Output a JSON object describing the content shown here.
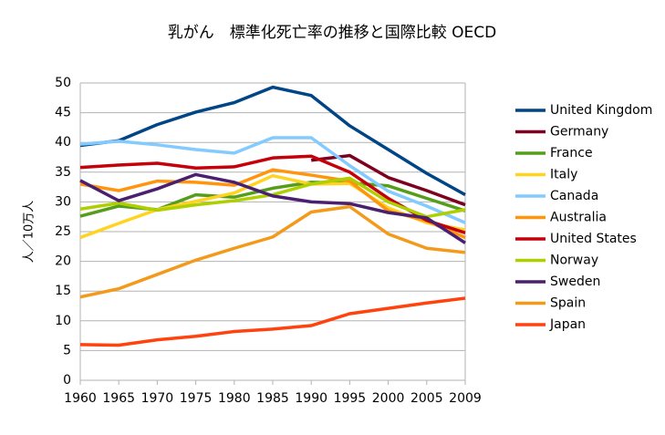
{
  "chart_data": {
    "type": "line",
    "title": "乳がん　標準化死亡率の推移と国際比較 OECD",
    "y_label": "人／10万人",
    "categories": [
      "1960",
      "1965",
      "1970",
      "1975",
      "1980",
      "1985",
      "1990",
      "1995",
      "2000",
      "2005",
      "2009"
    ],
    "ylim": [
      0,
      50
    ],
    "yticks": [
      0,
      5,
      10,
      15,
      20,
      25,
      30,
      35,
      40,
      45,
      50
    ],
    "grid": true,
    "legend": "right",
    "series": [
      {
        "name": "United Kingdom",
        "color": "#004586",
        "values": [
          39.5,
          40.3,
          43,
          45.1,
          46.7,
          49.3,
          47.9,
          42.8,
          38.8,
          34.8,
          31.2
        ]
      },
      {
        "name": "Germany",
        "color": "#7e0021",
        "values": [
          null,
          null,
          null,
          null,
          null,
          null,
          37.0,
          37.8,
          34.1,
          31.9,
          29.5
        ]
      },
      {
        "name": "France",
        "color": "#579d1c",
        "values": [
          27.6,
          29.3,
          28.7,
          31.2,
          30.8,
          32.3,
          33.3,
          33.2,
          32.7,
          30.6,
          28.5
        ]
      },
      {
        "name": "Italy",
        "color": "#ffd320",
        "values": [
          24.0,
          26.4,
          28.7,
          30.1,
          31.5,
          34.4,
          33.0,
          33.1,
          29.0,
          26.5,
          25.3
        ]
      },
      {
        "name": "Canada",
        "color": "#83caff",
        "values": [
          39.7,
          40.2,
          39.6,
          38.8,
          38.2,
          40.8,
          40.8,
          36.1,
          31.8,
          29.3,
          26.5
        ]
      },
      {
        "name": "Australia",
        "color": "#ff950e",
        "values": [
          33.0,
          31.9,
          33.5,
          33.3,
          32.8,
          35.4,
          34.5,
          33.5,
          28.5,
          26.8,
          24.0
        ]
      },
      {
        "name": "United States",
        "color": "#c5000b",
        "values": [
          35.8,
          36.2,
          36.5,
          35.7,
          35.9,
          37.4,
          37.7,
          35.0,
          30.6,
          26.9,
          24.8
        ]
      },
      {
        "name": "Norway",
        "color": "#aecf00",
        "values": [
          28.8,
          29.8,
          28.6,
          29.5,
          30.2,
          31.2,
          33.0,
          34.0,
          30.0,
          27.5,
          28.7
        ]
      },
      {
        "name": "Sweden",
        "color": "#4b1f6f",
        "values": [
          33.6,
          30.2,
          32.2,
          34.6,
          33.3,
          31.0,
          30.0,
          29.7,
          28.2,
          27.3,
          23.1
        ]
      },
      {
        "name": "Spain",
        "color": "#f39a1c",
        "values": [
          14.0,
          15.4,
          17.8,
          20.2,
          22.2,
          24.1,
          28.3,
          29.2,
          24.6,
          22.2,
          21.5
        ]
      },
      {
        "name": "Japan",
        "color": "#ff420e",
        "values": [
          6.0,
          5.9,
          6.8,
          7.4,
          8.2,
          8.6,
          9.2,
          11.2,
          12.1,
          13.0,
          13.8
        ]
      }
    ]
  }
}
